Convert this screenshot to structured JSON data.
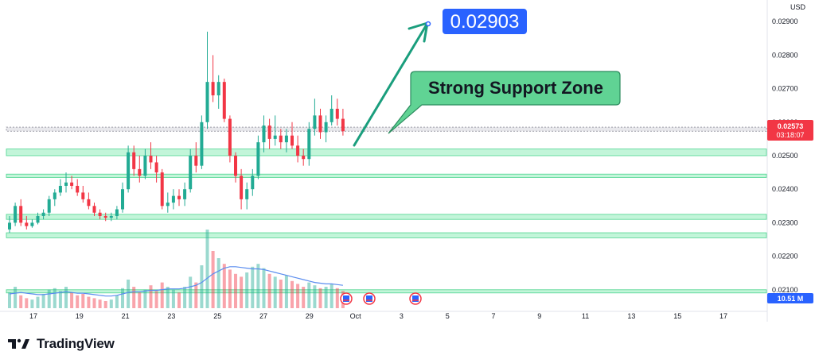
{
  "brand": {
    "name": "TradingView"
  },
  "currency_label": "USD",
  "price_tag": {
    "price": "0.02573",
    "countdown": "03:18:07",
    "color": "#f23645"
  },
  "volume_tag": {
    "value": "10.51 M",
    "color": "#2962ff"
  },
  "annotations": {
    "target": "0.02903",
    "callout": "Strong Support Zone"
  },
  "colors": {
    "up": "#22ab94",
    "down": "#f23645",
    "zone_fill": "#c2f5d9",
    "zone_border": "#4dd48f",
    "arrow": "#1a9e7d",
    "callout_fill": "#60d394",
    "target_fill": "#2962ff",
    "ma_line": "#5b8def"
  },
  "chart_data": {
    "type": "candlestick",
    "y_axis": {
      "min": 0.02045,
      "max": 0.02955,
      "ticks": [
        "0.02900",
        "0.02800",
        "0.02700",
        "0.02600",
        "0.02500",
        "0.02400",
        "0.02300",
        "0.02200",
        "0.02100"
      ]
    },
    "x_axis": {
      "ticks": [
        "17",
        "19",
        "21",
        "23",
        "25",
        "27",
        "29",
        "Oct",
        "3",
        "5",
        "7",
        "9",
        "11",
        "13",
        "15",
        "17"
      ]
    },
    "support_zones": [
      {
        "low": 0.02573,
        "high": 0.02585,
        "style": "current-price"
      },
      {
        "low": 0.025,
        "high": 0.0252
      },
      {
        "low": 0.02435,
        "high": 0.02445
      },
      {
        "low": 0.0231,
        "high": 0.02325
      },
      {
        "low": 0.02255,
        "high": 0.0227
      },
      {
        "low": 0.02092,
        "high": 0.021
      }
    ],
    "candles": [
      [
        0.0228,
        0.0232,
        0.0227,
        0.023
      ],
      [
        0.023,
        0.0236,
        0.0229,
        0.0235
      ],
      [
        0.0235,
        0.0237,
        0.0229,
        0.023
      ],
      [
        0.023,
        0.0232,
        0.0228,
        0.0229
      ],
      [
        0.0229,
        0.0231,
        0.02285,
        0.023
      ],
      [
        0.023,
        0.0233,
        0.02295,
        0.0232
      ],
      [
        0.0232,
        0.0234,
        0.0231,
        0.0233
      ],
      [
        0.0233,
        0.0238,
        0.0232,
        0.0237
      ],
      [
        0.0237,
        0.024,
        0.0235,
        0.0239
      ],
      [
        0.0239,
        0.0243,
        0.0238,
        0.0241
      ],
      [
        0.0241,
        0.0245,
        0.0239,
        0.0242
      ],
      [
        0.0242,
        0.0244,
        0.024,
        0.0241
      ],
      [
        0.0241,
        0.0243,
        0.0238,
        0.0239
      ],
      [
        0.0239,
        0.0241,
        0.0236,
        0.0237
      ],
      [
        0.0237,
        0.0239,
        0.0234,
        0.0235
      ],
      [
        0.0235,
        0.0236,
        0.0232,
        0.0233
      ],
      [
        0.0233,
        0.0234,
        0.0231,
        0.0232
      ],
      [
        0.0232,
        0.0233,
        0.02305,
        0.02315
      ],
      [
        0.02315,
        0.0233,
        0.02305,
        0.0232
      ],
      [
        0.0232,
        0.0235,
        0.0231,
        0.0234
      ],
      [
        0.0234,
        0.0242,
        0.0233,
        0.024
      ],
      [
        0.024,
        0.0253,
        0.0239,
        0.0251
      ],
      [
        0.0251,
        0.0253,
        0.0244,
        0.0246
      ],
      [
        0.0246,
        0.025,
        0.0242,
        0.0244
      ],
      [
        0.0244,
        0.0252,
        0.0243,
        0.025
      ],
      [
        0.025,
        0.0254,
        0.0246,
        0.0248
      ],
      [
        0.0248,
        0.025,
        0.0242,
        0.0245
      ],
      [
        0.0245,
        0.0246,
        0.0234,
        0.0235
      ],
      [
        0.0235,
        0.0239,
        0.0233,
        0.0236
      ],
      [
        0.0236,
        0.024,
        0.0234,
        0.0238
      ],
      [
        0.0238,
        0.024,
        0.0235,
        0.0237
      ],
      [
        0.0237,
        0.0242,
        0.0235,
        0.024
      ],
      [
        0.024,
        0.0252,
        0.0239,
        0.025
      ],
      [
        0.025,
        0.0254,
        0.0245,
        0.0247
      ],
      [
        0.0247,
        0.0262,
        0.0246,
        0.026
      ],
      [
        0.026,
        0.0287,
        0.0258,
        0.0272
      ],
      [
        0.0272,
        0.028,
        0.0266,
        0.0268
      ],
      [
        0.0268,
        0.0274,
        0.0264,
        0.0272
      ],
      [
        0.0272,
        0.0273,
        0.026,
        0.0261
      ],
      [
        0.0261,
        0.0262,
        0.0248,
        0.025
      ],
      [
        0.025,
        0.0251,
        0.0242,
        0.0244
      ],
      [
        0.0244,
        0.0246,
        0.0234,
        0.0237
      ],
      [
        0.0237,
        0.0242,
        0.0234,
        0.024
      ],
      [
        0.024,
        0.0246,
        0.0238,
        0.0244
      ],
      [
        0.0244,
        0.0256,
        0.0243,
        0.0254
      ],
      [
        0.0254,
        0.0262,
        0.0251,
        0.0259
      ],
      [
        0.0259,
        0.0261,
        0.0252,
        0.0255
      ],
      [
        0.0255,
        0.0262,
        0.0253,
        0.0256
      ],
      [
        0.0256,
        0.0258,
        0.0252,
        0.0254
      ],
      [
        0.0254,
        0.0258,
        0.0251,
        0.0256
      ],
      [
        0.0256,
        0.026,
        0.0252,
        0.0253
      ],
      [
        0.0253,
        0.0256,
        0.0248,
        0.025
      ],
      [
        0.025,
        0.0252,
        0.0247,
        0.0249
      ],
      [
        0.0249,
        0.026,
        0.0247,
        0.0258
      ],
      [
        0.0258,
        0.0267,
        0.0256,
        0.0262
      ],
      [
        0.0262,
        0.0264,
        0.0255,
        0.0257
      ],
      [
        0.0257,
        0.0262,
        0.0254,
        0.026
      ],
      [
        0.026,
        0.0268,
        0.0259,
        0.0264
      ],
      [
        0.0264,
        0.0267,
        0.0259,
        0.0261
      ],
      [
        0.0261,
        0.0264,
        0.0256,
        0.02573
      ]
    ],
    "volume": [
      22,
      30,
      18,
      14,
      12,
      16,
      20,
      26,
      28,
      24,
      30,
      22,
      18,
      20,
      16,
      14,
      12,
      10,
      12,
      18,
      28,
      40,
      30,
      22,
      26,
      32,
      24,
      36,
      30,
      26,
      22,
      30,
      44,
      36,
      60,
      110,
      80,
      70,
      62,
      54,
      48,
      44,
      50,
      58,
      62,
      56,
      48,
      44,
      40,
      46,
      38,
      34,
      30,
      36,
      32,
      28,
      30,
      34,
      28,
      24
    ],
    "volume_ma": [
      20,
      21,
      22,
      21,
      20,
      19,
      19,
      20,
      21,
      22,
      23,
      22,
      21,
      21,
      20,
      19,
      18,
      17,
      17,
      18,
      20,
      22,
      23,
      23,
      24,
      25,
      25,
      26,
      27,
      27,
      27,
      28,
      30,
      32,
      36,
      42,
      48,
      52,
      56,
      58,
      58,
      57,
      56,
      55,
      55,
      54,
      52,
      50,
      48,
      46,
      44,
      42,
      40,
      38,
      36,
      35,
      34,
      34,
      33,
      32
    ],
    "events": [
      "earnings-icon",
      "earnings-icon",
      "earnings-icon"
    ]
  }
}
